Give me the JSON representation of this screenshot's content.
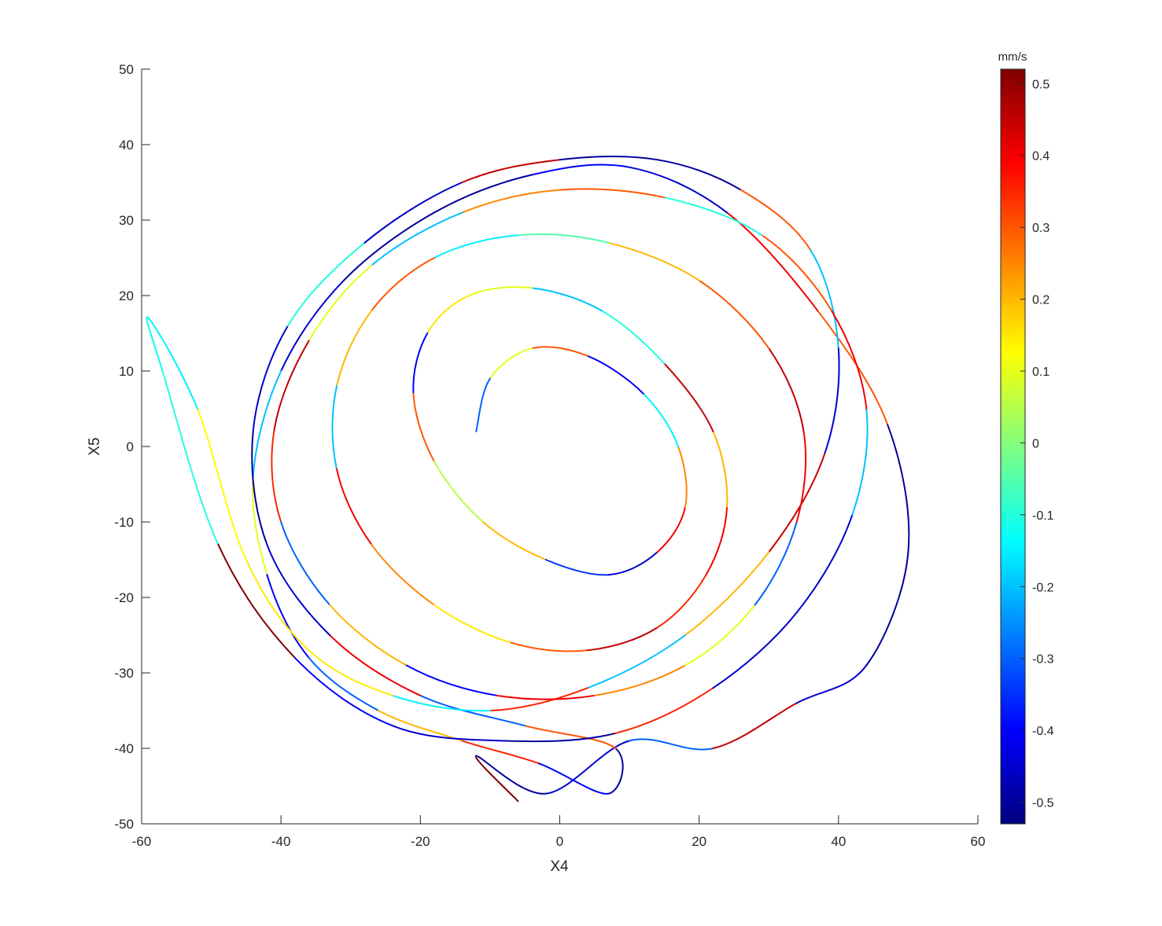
{
  "chart_data": {
    "type": "line",
    "title": "",
    "xlabel": "X4",
    "ylabel": "X5",
    "xlim": [
      -60,
      60
    ],
    "ylim": [
      -50,
      50
    ],
    "xticks": [
      "-60",
      "-40",
      "-20",
      "0",
      "20",
      "40",
      "60"
    ],
    "yticks": [
      "50",
      "40",
      "30",
      "20",
      "10",
      "0",
      "-10",
      "-20",
      "-30",
      "-40",
      "-50"
    ],
    "grid": false,
    "colormap": "jet",
    "colorbar": {
      "title": "mm/s",
      "range": [
        -0.53,
        0.52
      ],
      "ticks": [
        "0.5",
        "0.4",
        "0.3",
        "0.2",
        "0.1",
        "0",
        "-0.1",
        "-0.2",
        "-0.3",
        "-0.4",
        "-0.5"
      ],
      "colors": [
        "#00007f",
        "#0000ff",
        "#007fff",
        "#00ffff",
        "#7fff7f",
        "#ffff00",
        "#ff7f00",
        "#ff0000",
        "#7f0000"
      ]
    },
    "series": [
      {
        "x": [
          -6,
          -12,
          -2,
          10,
          22,
          34,
          44,
          50,
          47,
          37,
          24,
          10,
          -4,
          -18,
          -31,
          -40,
          -44,
          -42,
          -36,
          -26,
          -14,
          -3,
          7,
          8,
          -5,
          -20,
          -33,
          -42,
          -44,
          -39,
          -28,
          -14,
          0,
          14,
          26,
          36,
          40,
          38,
          30,
          18,
          4,
          -10,
          -24,
          -36,
          -45,
          -52,
          -59,
          -57,
          -49,
          -38,
          -24,
          -8,
          8,
          22,
          34,
          42,
          44,
          39,
          29,
          15,
          0,
          -14,
          -27,
          -36,
          -41,
          -40,
          -33,
          -22,
          -9,
          5,
          18,
          28,
          34,
          35,
          30,
          20,
          7,
          -6,
          -18,
          -27,
          -32,
          -32,
          -27,
          -18,
          -7,
          4,
          14,
          21,
          24,
          22,
          15,
          6,
          -4,
          -13,
          -19,
          -21,
          -18,
          -11,
          -2,
          7,
          14,
          18,
          17,
          12,
          4,
          -4,
          -10,
          -12
        ],
        "y": [
          -47,
          -41,
          -46,
          -39,
          -40,
          -34,
          -29,
          -14,
          3,
          18,
          31,
          37,
          36,
          31,
          22,
          10,
          -4,
          -17,
          -28,
          -35,
          -39,
          -42,
          -46,
          -40,
          -37,
          -33,
          -25,
          -13,
          2,
          16,
          27,
          35,
          38,
          38,
          34,
          26,
          13,
          -1,
          -14,
          -25,
          -32,
          -35,
          -33,
          -27,
          -15,
          5,
          17,
          10,
          -13,
          -28,
          -37,
          -39,
          -38,
          -32,
          -22,
          -9,
          5,
          18,
          28,
          33,
          34,
          31,
          24,
          14,
          2,
          -10,
          -21,
          -29,
          -33,
          -33,
          -29,
          -21,
          -10,
          2,
          13,
          22,
          27,
          28,
          25,
          18,
          8,
          -3,
          -13,
          -21,
          -26,
          -27,
          -24,
          -17,
          -8,
          2,
          11,
          18,
          21,
          20,
          15,
          7,
          -2,
          -10,
          -15,
          -17,
          -14,
          -8,
          0,
          7,
          12,
          13,
          9,
          2
        ],
        "v": [
          0.52,
          -0.5,
          -0.45,
          -0.3,
          0.45,
          -0.45,
          -0.5,
          -0.5,
          0.3,
          0.4,
          -0.45,
          -0.4,
          -0.5,
          -0.5,
          -0.45,
          -0.2,
          0.1,
          -0.4,
          -0.3,
          0.2,
          0.35,
          -0.4,
          -0.5,
          0.3,
          -0.3,
          0.4,
          -0.45,
          -0.5,
          -0.45,
          -0.1,
          -0.45,
          0.45,
          -0.5,
          -0.5,
          0.3,
          -0.2,
          -0.45,
          0.45,
          0.2,
          -0.2,
          0.35,
          -0.15,
          0.15,
          0.15,
          0.12,
          -0.15,
          -0.12,
          -0.1,
          0.52,
          -0.4,
          -0.45,
          -0.5,
          0.35,
          -0.45,
          -0.45,
          -0.2,
          0.4,
          0.3,
          -0.1,
          0.3,
          0.25,
          -0.2,
          0.1,
          0.45,
          0.35,
          -0.3,
          0.2,
          -0.4,
          0.4,
          0.25,
          0.1,
          -0.3,
          0.4,
          0.45,
          0.3,
          0.2,
          -0.05,
          -0.15,
          0.3,
          0.2,
          -0.2,
          0.4,
          0.25,
          0.15,
          0.3,
          0.45,
          0.35,
          0.4,
          0.2,
          0.45,
          -0.1,
          -0.2,
          0.1,
          0.15,
          -0.4,
          0.3,
          0.05,
          0.2,
          -0.35,
          -0.45,
          0.4,
          0.25,
          -0.15,
          -0.4,
          0.3,
          0.1,
          -0.3,
          0.2
        ]
      }
    ]
  }
}
